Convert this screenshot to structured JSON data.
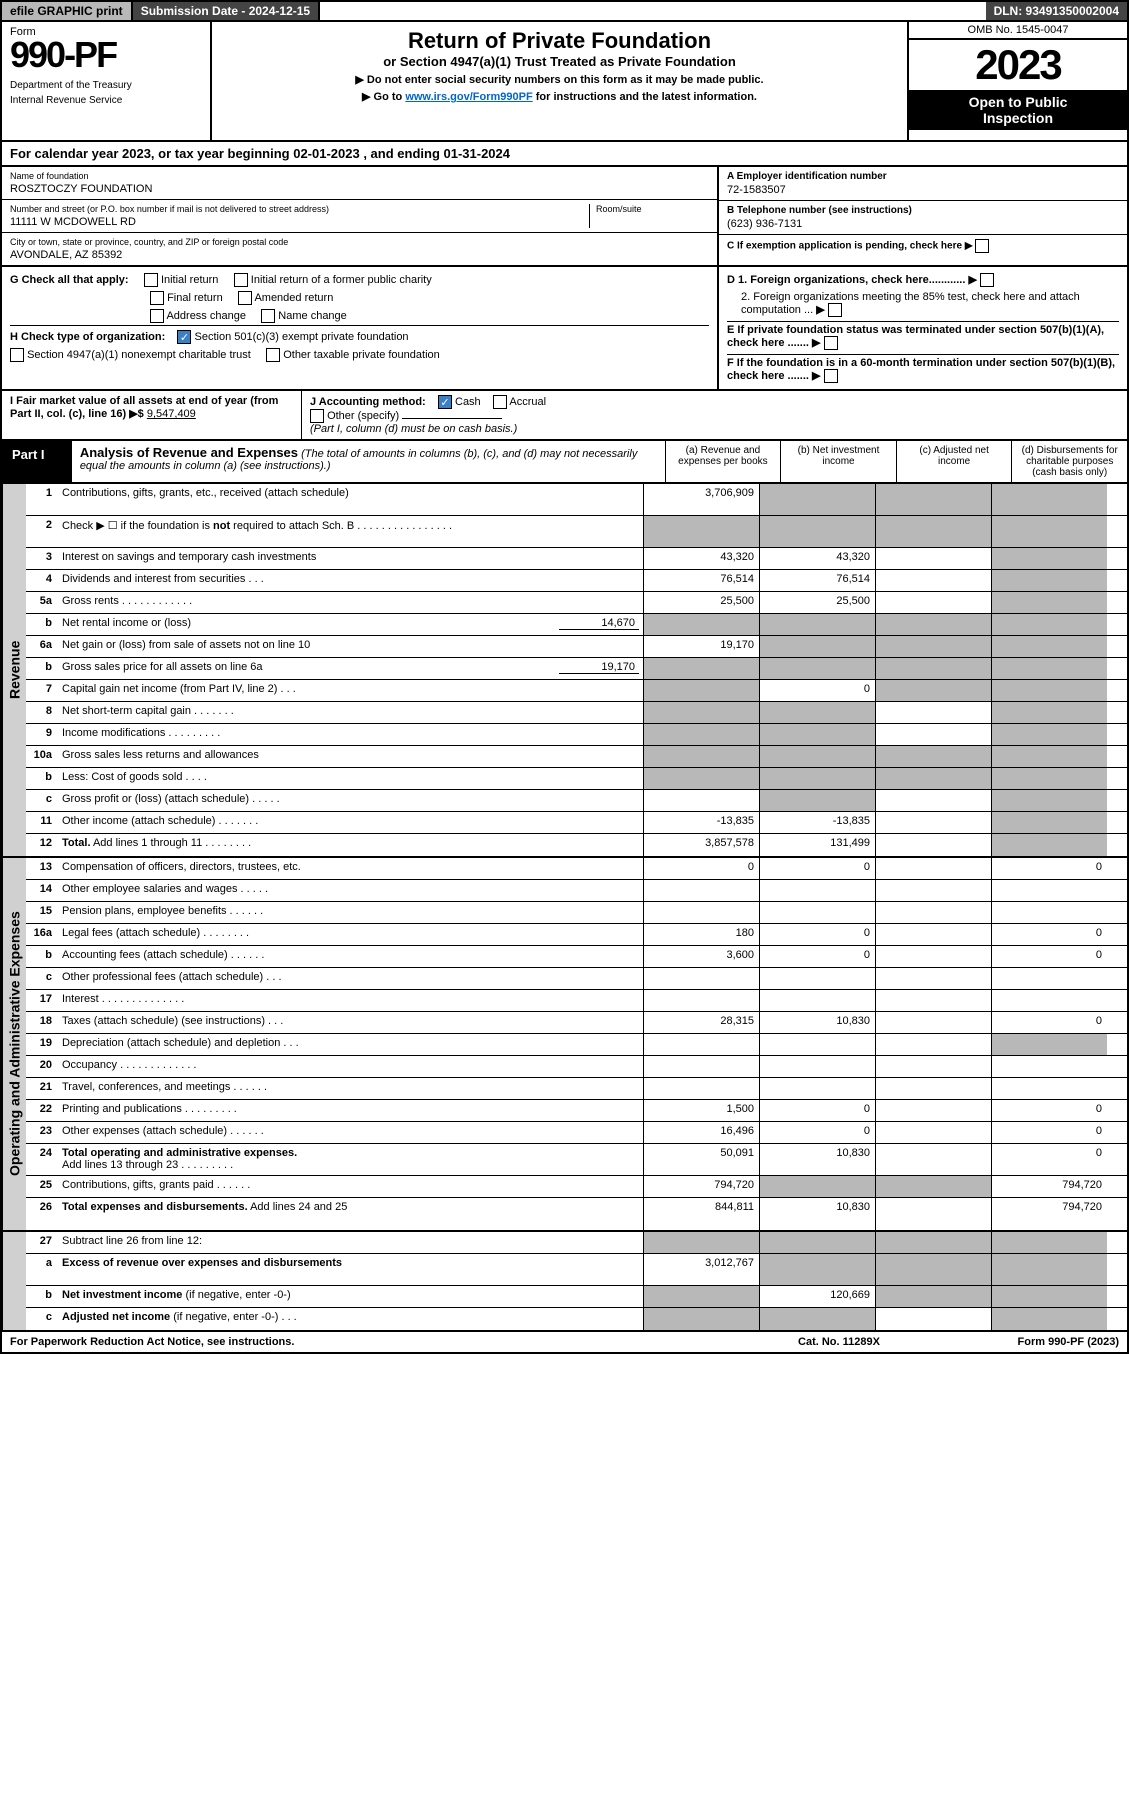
{
  "topbar": {
    "efile": "efile GRAPHIC print",
    "submission": "Submission Date - 2024-12-15",
    "dln": "DLN: 93491350002004"
  },
  "header": {
    "form_label": "Form",
    "form_number": "990-PF",
    "dept1": "Department of the Treasury",
    "dept2": "Internal Revenue Service",
    "title": "Return of Private Foundation",
    "subtitle": "or Section 4947(a)(1) Trust Treated as Private Foundation",
    "note1": "▶ Do not enter social security numbers on this form as it may be made public.",
    "note2_pre": "▶ Go to ",
    "note2_link": "www.irs.gov/Form990PF",
    "note2_post": " for instructions and the latest information.",
    "omb": "OMB No. 1545-0047",
    "year": "2023",
    "open1": "Open to Public",
    "open2": "Inspection"
  },
  "cal_year": "For calendar year 2023, or tax year beginning 02-01-2023             , and ending 01-31-2024",
  "info": {
    "name_label": "Name of foundation",
    "name": "ROSZTOCZY FOUNDATION",
    "addr_label": "Number and street (or P.O. box number if mail is not delivered to street address)",
    "addr": "11111 W MCDOWELL RD",
    "room_label": "Room/suite",
    "city_label": "City or town, state or province, country, and ZIP or foreign postal code",
    "city": "AVONDALE, AZ  85392",
    "a_label": "A Employer identification number",
    "a_val": "72-1583507",
    "b_label": "B Telephone number (see instructions)",
    "b_val": "(623) 936-7131",
    "c_label": "C If exemption application is pending, check here",
    "d1": "D 1. Foreign organizations, check here............",
    "d2": "2. Foreign organizations meeting the 85% test, check here and attach computation ...",
    "e": "E  If private foundation status was terminated under section 507(b)(1)(A), check here .......",
    "f": "F  If the foundation is in a 60-month termination under section 507(b)(1)(B), check here .......",
    "g_label": "G Check all that apply:",
    "g_opts": [
      "Initial return",
      "Initial return of a former public charity",
      "Final return",
      "Amended return",
      "Address change",
      "Name change"
    ],
    "h_label": "H Check type of organization:",
    "h1": "Section 501(c)(3) exempt private foundation",
    "h2": "Section 4947(a)(1) nonexempt charitable trust",
    "h3": "Other taxable private foundation",
    "i_label": "I Fair market value of all assets at end of year (from Part II, col. (c), line 16)",
    "i_val": "9,547,409",
    "j_label": "J Accounting method:",
    "j1": "Cash",
    "j2": "Accrual",
    "j3": "Other (specify)",
    "j_note": "(Part I, column (d) must be on cash basis.)"
  },
  "part1": {
    "label": "Part I",
    "title": "Analysis of Revenue and Expenses",
    "title_note": " (The total of amounts in columns (b), (c), and (d) may not necessarily equal the amounts in column (a) (see instructions).)",
    "col_a": "(a)   Revenue and expenses per books",
    "col_b": "(b)   Net investment income",
    "col_c": "(c)   Adjusted net income",
    "col_d": "(d)   Disbursements for charitable purposes (cash basis only)"
  },
  "sections": {
    "revenue": "Revenue",
    "expenses": "Operating and Administrative Expenses"
  },
  "rows": {
    "r1": {
      "n": "1",
      "d": "",
      "a": "3,706,909",
      "b": "",
      "c": "",
      "grey": [
        "b",
        "c",
        "d"
      ]
    },
    "r2": {
      "n": "2",
      "d": "",
      "a": "",
      "b": "",
      "c": "",
      "grey": [
        "a",
        "b",
        "c",
        "d"
      ]
    },
    "r3": {
      "n": "3",
      "d": "",
      "a": "43,320",
      "b": "43,320",
      "c": "",
      "grey": [
        "d"
      ]
    },
    "r4": {
      "n": "4",
      "d": "",
      "a": "76,514",
      "b": "76,514",
      "c": "",
      "grey": [
        "d"
      ]
    },
    "r5a": {
      "n": "5a",
      "d": "",
      "a": "25,500",
      "b": "25,500",
      "c": "",
      "grey": [
        "d"
      ]
    },
    "r5b": {
      "n": "b",
      "d": "",
      "inline": "14,670",
      "a": "",
      "b": "",
      "c": "",
      "grey": [
        "a",
        "b",
        "c",
        "d"
      ]
    },
    "r6a": {
      "n": "6a",
      "d": "",
      "a": "19,170",
      "b": "",
      "c": "",
      "grey": [
        "b",
        "c",
        "d"
      ]
    },
    "r6b": {
      "n": "b",
      "d": "",
      "inline": "19,170",
      "a": "",
      "b": "",
      "c": "",
      "grey": [
        "a",
        "b",
        "c",
        "d"
      ]
    },
    "r7": {
      "n": "7",
      "d": "",
      "a": "",
      "b": "0",
      "c": "",
      "grey": [
        "a",
        "c",
        "d"
      ]
    },
    "r8": {
      "n": "8",
      "d": "",
      "a": "",
      "b": "",
      "c": "",
      "grey": [
        "a",
        "b",
        "d"
      ]
    },
    "r9": {
      "n": "9",
      "d": "",
      "a": "",
      "b": "",
      "c": "",
      "grey": [
        "a",
        "b",
        "d"
      ]
    },
    "r10a": {
      "n": "10a",
      "d": "",
      "a": "",
      "b": "",
      "c": "",
      "grey": [
        "a",
        "b",
        "c",
        "d"
      ]
    },
    "r10b": {
      "n": "b",
      "d": "",
      "a": "",
      "b": "",
      "c": "",
      "grey": [
        "a",
        "b",
        "c",
        "d"
      ]
    },
    "r10c": {
      "n": "c",
      "d": "",
      "a": "",
      "b": "",
      "c": "",
      "grey": [
        "b",
        "d"
      ]
    },
    "r11": {
      "n": "11",
      "d": "",
      "a": "-13,835",
      "b": "-13,835",
      "c": "",
      "grey": [
        "d"
      ]
    },
    "r12": {
      "n": "12",
      "d": "",
      "bold": true,
      "a": "3,857,578",
      "b": "131,499",
      "c": "",
      "grey": [
        "d"
      ]
    },
    "r13": {
      "n": "13",
      "d": "0",
      "a": "0",
      "b": "0",
      "c": ""
    },
    "r14": {
      "n": "14",
      "d": "",
      "a": "",
      "b": "",
      "c": ""
    },
    "r15": {
      "n": "15",
      "d": "",
      "a": "",
      "b": "",
      "c": ""
    },
    "r16a": {
      "n": "16a",
      "d": "0",
      "a": "180",
      "b": "0",
      "c": ""
    },
    "r16b": {
      "n": "b",
      "d": "0",
      "a": "3,600",
      "b": "0",
      "c": ""
    },
    "r16c": {
      "n": "c",
      "d": "",
      "a": "",
      "b": "",
      "c": ""
    },
    "r17": {
      "n": "17",
      "d": "",
      "a": "",
      "b": "",
      "c": ""
    },
    "r18": {
      "n": "18",
      "d": "0",
      "a": "28,315",
      "b": "10,830",
      "c": ""
    },
    "r19": {
      "n": "19",
      "d": "",
      "a": "",
      "b": "",
      "c": "",
      "grey": [
        "d"
      ]
    },
    "r20": {
      "n": "20",
      "d": "",
      "a": "",
      "b": "",
      "c": ""
    },
    "r21": {
      "n": "21",
      "d": "",
      "a": "",
      "b": "",
      "c": ""
    },
    "r22": {
      "n": "22",
      "d": "0",
      "a": "1,500",
      "b": "0",
      "c": ""
    },
    "r23": {
      "n": "23",
      "d": "0",
      "a": "16,496",
      "b": "0",
      "c": ""
    },
    "r24": {
      "n": "24",
      "d": "0",
      "bold": true,
      "a": "50,091",
      "b": "10,830",
      "c": ""
    },
    "r25": {
      "n": "25",
      "d": "794,720",
      "a": "794,720",
      "b": "",
      "c": "",
      "grey": [
        "b",
        "c"
      ]
    },
    "r26": {
      "n": "26",
      "d": "794,720",
      "bold": true,
      "a": "844,811",
      "b": "10,830",
      "c": ""
    },
    "r27": {
      "n": "27",
      "d": "",
      "a": "",
      "b": "",
      "c": "",
      "grey": [
        "a",
        "b",
        "c",
        "d"
      ]
    },
    "r27a": {
      "n": "a",
      "d": "",
      "bold": true,
      "a": "3,012,767",
      "b": "",
      "c": "",
      "grey": [
        "b",
        "c",
        "d"
      ]
    },
    "r27b": {
      "n": "b",
      "d": "",
      "bold": true,
      "a": "",
      "b": "120,669",
      "c": "",
      "grey": [
        "a",
        "c",
        "d"
      ]
    },
    "r27c": {
      "n": "c",
      "d": "",
      "bold": true,
      "a": "",
      "b": "",
      "c": "",
      "grey": [
        "a",
        "b",
        "d"
      ]
    }
  },
  "footer": {
    "left": "For Paperwork Reduction Act Notice, see instructions.",
    "mid": "Cat. No. 11289X",
    "right": "Form 990-PF (2023)"
  }
}
